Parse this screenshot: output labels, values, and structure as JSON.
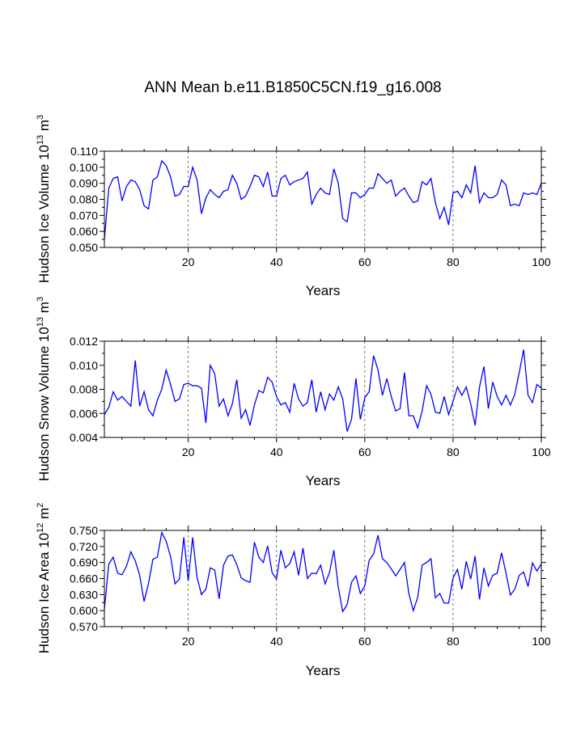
{
  "title": "ANN Mean b.e11.B1850C5CN.f19_g16.008",
  "colors": {
    "line": "#0000ff",
    "axes": "#000000",
    "grid": "#555555"
  },
  "chart_data": [
    {
      "type": "line",
      "name": "ice-volume",
      "ylabel_main": "Hudson Ice Volume 10",
      "ylabel_sup": "13",
      "ylabel_unit": " m",
      "ylabel_unit_sup": "3",
      "xlabel": "Years",
      "xlim": [
        1,
        100
      ],
      "ylim": [
        0.05,
        0.11
      ],
      "xticks": [
        20,
        40,
        60,
        80,
        100
      ],
      "yticks": [
        0.05,
        0.06,
        0.07,
        0.08,
        0.09,
        0.1,
        0.11
      ],
      "ytick_labels": [
        "0.050",
        "0.060",
        "0.070",
        "0.080",
        "0.090",
        "0.100",
        "0.110"
      ],
      "grid_x": [
        20,
        40,
        60,
        80
      ],
      "y": [
        0.055,
        0.087,
        0.093,
        0.094,
        0.079,
        0.088,
        0.092,
        0.091,
        0.086,
        0.076,
        0.074,
        0.092,
        0.094,
        0.104,
        0.101,
        0.094,
        0.082,
        0.083,
        0.088,
        0.088,
        0.1,
        0.092,
        0.071,
        0.081,
        0.086,
        0.083,
        0.081,
        0.085,
        0.086,
        0.095,
        0.09,
        0.08,
        0.082,
        0.088,
        0.095,
        0.094,
        0.088,
        0.097,
        0.082,
        0.082,
        0.093,
        0.095,
        0.089,
        0.091,
        0.092,
        0.093,
        0.097,
        0.077,
        0.083,
        0.087,
        0.084,
        0.083,
        0.099,
        0.09,
        0.068,
        0.066,
        0.084,
        0.084,
        0.081,
        0.083,
        0.087,
        0.087,
        0.096,
        0.093,
        0.09,
        0.092,
        0.082,
        0.085,
        0.087,
        0.082,
        0.078,
        0.079,
        0.091,
        0.089,
        0.093,
        0.078,
        0.068,
        0.075,
        0.064,
        0.084,
        0.085,
        0.081,
        0.089,
        0.084,
        0.101,
        0.078,
        0.084,
        0.081,
        0.081,
        0.083,
        0.092,
        0.089,
        0.076,
        0.077,
        0.076,
        0.084,
        0.083,
        0.084,
        0.083,
        0.09
      ]
    },
    {
      "type": "line",
      "name": "snow-volume",
      "ylabel_main": "Hudson Snow Volume 10",
      "ylabel_sup": "13",
      "ylabel_unit": " m",
      "ylabel_unit_sup": "3",
      "xlabel": "Years",
      "xlim": [
        1,
        100
      ],
      "ylim": [
        0.004,
        0.012
      ],
      "xticks": [
        20,
        40,
        60,
        80,
        100
      ],
      "yticks": [
        0.004,
        0.006,
        0.008,
        0.01,
        0.012
      ],
      "ytick_labels": [
        "0.004",
        "0.006",
        "0.008",
        "0.010",
        "0.012"
      ],
      "grid_x": [
        20,
        40,
        60,
        80
      ],
      "y": [
        0.0059,
        0.0065,
        0.0078,
        0.0071,
        0.0074,
        0.007,
        0.0066,
        0.0104,
        0.0066,
        0.0078,
        0.0063,
        0.0058,
        0.0071,
        0.008,
        0.0096,
        0.0084,
        0.007,
        0.0072,
        0.0084,
        0.0085,
        0.0083,
        0.0083,
        0.0081,
        0.0052,
        0.01,
        0.0093,
        0.0066,
        0.0072,
        0.0058,
        0.0068,
        0.0088,
        0.0056,
        0.0063,
        0.005,
        0.0067,
        0.0079,
        0.0077,
        0.009,
        0.0086,
        0.0074,
        0.0067,
        0.0069,
        0.0061,
        0.0085,
        0.0072,
        0.0066,
        0.0069,
        0.0088,
        0.0061,
        0.0078,
        0.0063,
        0.0076,
        0.0071,
        0.0082,
        0.0072,
        0.0045,
        0.0055,
        0.0089,
        0.0055,
        0.0073,
        0.0078,
        0.0108,
        0.0096,
        0.0075,
        0.0089,
        0.0074,
        0.0062,
        0.0064,
        0.0094,
        0.0058,
        0.0058,
        0.0048,
        0.0062,
        0.0083,
        0.0076,
        0.0061,
        0.006,
        0.0074,
        0.0059,
        0.007,
        0.0082,
        0.0075,
        0.0082,
        0.0068,
        0.005,
        0.0082,
        0.0099,
        0.0064,
        0.0086,
        0.0074,
        0.0067,
        0.0075,
        0.0067,
        0.0076,
        0.0094,
        0.0113,
        0.0075,
        0.0069,
        0.0084,
        0.0081
      ]
    },
    {
      "type": "line",
      "name": "ice-area",
      "ylabel_main": "Hudson Ice Area 10",
      "ylabel_sup": "12",
      "ylabel_unit": " m",
      "ylabel_unit_sup": "2",
      "xlabel": "Years",
      "xlim": [
        1,
        100
      ],
      "ylim": [
        0.57,
        0.75
      ],
      "xticks": [
        20,
        40,
        60,
        80,
        100
      ],
      "yticks": [
        0.57,
        0.6,
        0.63,
        0.66,
        0.69,
        0.72,
        0.75
      ],
      "ytick_labels": [
        "0.570",
        "0.600",
        "0.630",
        "0.660",
        "0.690",
        "0.720",
        "0.750"
      ],
      "grid_x": [
        20,
        40,
        60,
        80
      ],
      "y": [
        0.603,
        0.687,
        0.7,
        0.67,
        0.667,
        0.683,
        0.71,
        0.693,
        0.666,
        0.617,
        0.651,
        0.696,
        0.7,
        0.746,
        0.73,
        0.701,
        0.65,
        0.659,
        0.737,
        0.656,
        0.737,
        0.662,
        0.63,
        0.64,
        0.68,
        0.676,
        0.622,
        0.685,
        0.702,
        0.704,
        0.686,
        0.661,
        0.656,
        0.653,
        0.728,
        0.7,
        0.69,
        0.721,
        0.671,
        0.659,
        0.713,
        0.68,
        0.688,
        0.71,
        0.666,
        0.717,
        0.66,
        0.67,
        0.669,
        0.685,
        0.65,
        0.671,
        0.713,
        0.644,
        0.598,
        0.611,
        0.653,
        0.665,
        0.632,
        0.646,
        0.694,
        0.706,
        0.741,
        0.697,
        0.69,
        0.678,
        0.665,
        0.677,
        0.69,
        0.631,
        0.6,
        0.625,
        0.685,
        0.69,
        0.697,
        0.624,
        0.632,
        0.614,
        0.614,
        0.661,
        0.677,
        0.64,
        0.692,
        0.659,
        0.702,
        0.621,
        0.68,
        0.646,
        0.666,
        0.67,
        0.708,
        0.67,
        0.629,
        0.64,
        0.666,
        0.672,
        0.645,
        0.689,
        0.674,
        0.687
      ]
    }
  ]
}
